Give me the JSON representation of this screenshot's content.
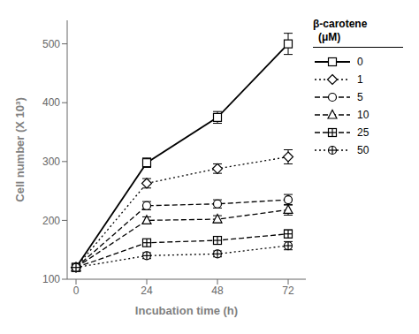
{
  "chart_data": {
    "type": "line",
    "title": "",
    "xlabel": "Incubation time (h)",
    "ylabel": "Cell number (X 10³)",
    "legend_title": "β-carotene\n(μM)",
    "legend": "right",
    "grid": false,
    "x": [
      0,
      24,
      48,
      72
    ],
    "xlim": [
      -3,
      78
    ],
    "xticks": [
      0,
      24,
      48,
      72
    ],
    "ylim": [
      100,
      540
    ],
    "yticks": [
      100,
      200,
      300,
      400,
      500
    ],
    "series": [
      {
        "name": "0",
        "color": "black",
        "marker": "square",
        "line_style": "solid",
        "values": [
          120,
          298,
          375,
          500
        ],
        "error": [
          4,
          8,
          10,
          18
        ]
      },
      {
        "name": "1",
        "color": "black",
        "marker": "diamond",
        "line_style": "dotted",
        "values": [
          120,
          263,
          288,
          308
        ],
        "error": [
          4,
          8,
          8,
          12
        ]
      },
      {
        "name": "5",
        "color": "black",
        "marker": "circle",
        "line_style": "dashed",
        "values": [
          120,
          225,
          228,
          235
        ],
        "error": [
          4,
          7,
          7,
          9
        ]
      },
      {
        "name": "10",
        "color": "black",
        "marker": "triangle",
        "line_style": "dashed",
        "values": [
          120,
          200,
          202,
          218
        ],
        "error": [
          4,
          6,
          6,
          9
        ]
      },
      {
        "name": "25",
        "color": "black",
        "marker": "plus_square",
        "line_style": "dashed",
        "values": [
          120,
          162,
          166,
          177
        ],
        "error": [
          4,
          5,
          5,
          7
        ]
      },
      {
        "name": "50",
        "color": "black",
        "marker": "circle_plus",
        "line_style": "dotted",
        "values": [
          120,
          140,
          143,
          157
        ],
        "error": [
          4,
          5,
          5,
          7
        ]
      }
    ]
  }
}
